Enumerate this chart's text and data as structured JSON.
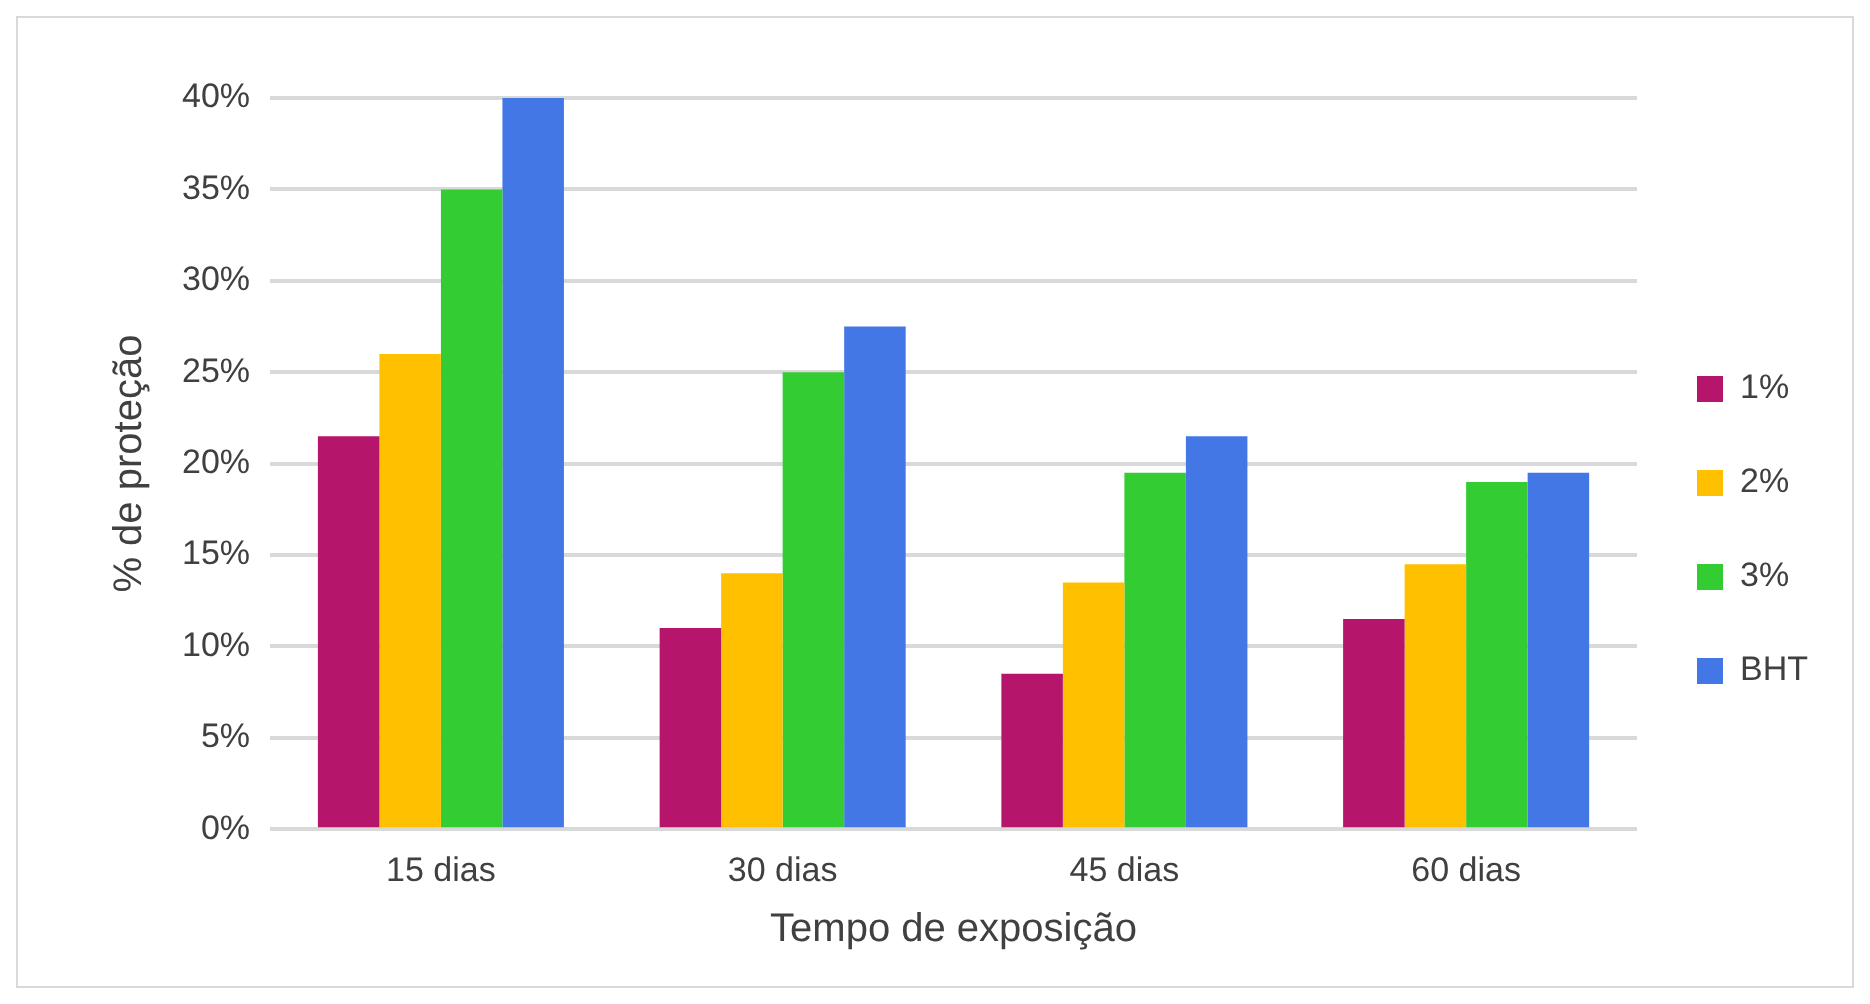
{
  "chart_data": {
    "type": "bar",
    "xlabel": "Tempo de exposição",
    "ylabel": "% de proteção",
    "categories": [
      "15 dias",
      "30 dias",
      "45 dias",
      "60 dias"
    ],
    "series": [
      {
        "name": "1%",
        "color": "#b5166b",
        "values": [
          21.5,
          11,
          8.5,
          11.5
        ]
      },
      {
        "name": "2%",
        "color": "#ffc000",
        "values": [
          26,
          14,
          13.5,
          14.5
        ]
      },
      {
        "name": "3%",
        "color": "#33cc33",
        "values": [
          35,
          25,
          19.5,
          19
        ]
      },
      {
        "name": "BHT",
        "color": "#4477e6",
        "values": [
          40,
          27.5,
          21.5,
          19.5
        ]
      }
    ],
    "ylim": [
      0,
      40
    ],
    "yticks": [
      {
        "value": 0,
        "label": "0%"
      },
      {
        "value": 5,
        "label": "5%"
      },
      {
        "value": 10,
        "label": "10%"
      },
      {
        "value": 15,
        "label": "15%"
      },
      {
        "value": 20,
        "label": "20%"
      },
      {
        "value": 25,
        "label": "25%"
      },
      {
        "value": 30,
        "label": "30%"
      },
      {
        "value": 35,
        "label": "35%"
      },
      {
        "value": 40,
        "label": "40%"
      }
    ],
    "grid": "y",
    "legend": "right"
  }
}
